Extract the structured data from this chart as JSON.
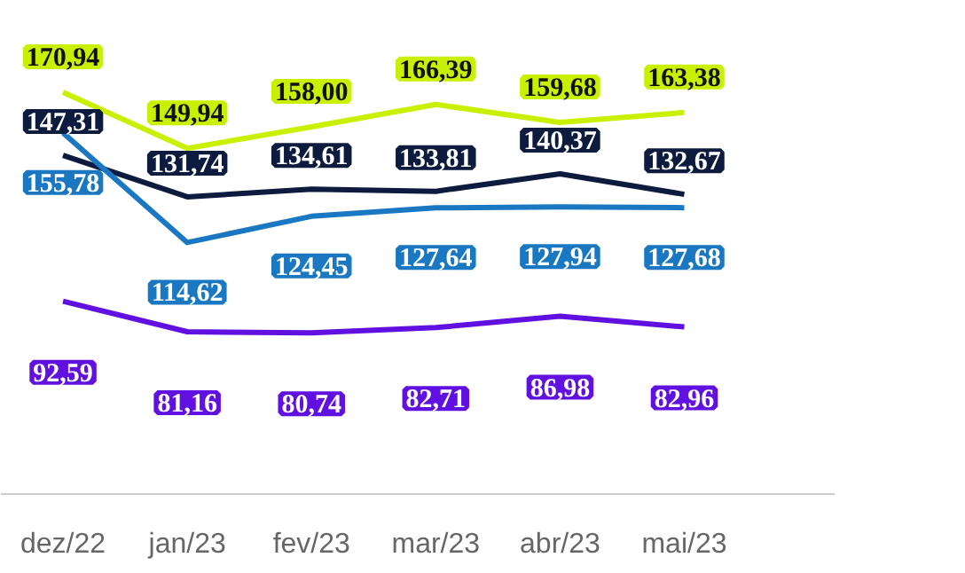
{
  "chart_data": {
    "type": "line",
    "categories": [
      "dez/22",
      "jan/23",
      "fev/23",
      "mar/23",
      "abr/23",
      "mai/23"
    ],
    "series": [
      {
        "color": "#c8f000",
        "values": [
          170.94,
          149.94,
          158.0,
          166.39,
          159.68,
          163.38
        ],
        "value_labels": [
          "170,94",
          "149,94",
          "158,00",
          "166,39",
          "159,68",
          "163,38"
        ]
      },
      {
        "color": "#0d1b3e",
        "values": [
          147.31,
          131.74,
          134.61,
          133.81,
          140.37,
          132.67
        ],
        "value_labels": [
          "147,31",
          "131,74",
          "134,61",
          "133,81",
          "140,37",
          "132,67"
        ]
      },
      {
        "color": "#1a78c2",
        "values": [
          155.78,
          114.62,
          124.45,
          127.64,
          127.94,
          127.68
        ],
        "value_labels": [
          "155,78",
          "114,62",
          "124,45",
          "127,64",
          "127,94",
          "127,68"
        ]
      },
      {
        "color": "#6010e0",
        "values": [
          92.59,
          81.16,
          80.74,
          82.71,
          86.98,
          82.96
        ],
        "value_labels": [
          "92,59",
          "81,16",
          "80,74",
          "82,71",
          "86,98",
          "82,96"
        ]
      }
    ]
  }
}
